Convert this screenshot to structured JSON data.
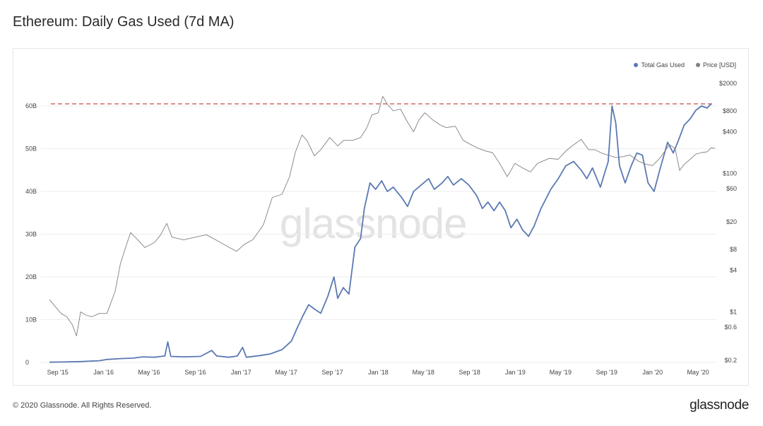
{
  "title": "Ethereum: Daily Gas Used (7d MA)",
  "footer": {
    "copyright": "© 2020 Glassnode. All Rights Reserved.",
    "logo": "glassnode"
  },
  "watermark": "glassnode",
  "legend": {
    "series1": {
      "label": "Total Gas Used",
      "color": "#5b79b2"
    },
    "series2": {
      "label": "Price [USD]",
      "color": "#808080"
    }
  },
  "chart_data": {
    "type": "line",
    "title": "Ethereum: Daily Gas Used (7d MA)",
    "xlabel": "",
    "ylabel": "",
    "x_ticks": [
      "Sep '15",
      "Jan '16",
      "May '16",
      "Sep '16",
      "Jan '17",
      "May '17",
      "Sep '17",
      "Jan '18",
      "May '18",
      "Sep '18",
      "Jan '19",
      "May '19",
      "Sep '19",
      "Jan '20",
      "May '20"
    ],
    "y_left": {
      "ticks": [
        0,
        10,
        20,
        30,
        40,
        50,
        60
      ],
      "labels": [
        "0",
        "10B",
        "20B",
        "30B",
        "40B",
        "50B",
        "60B"
      ],
      "ylim": [
        0,
        65
      ]
    },
    "y_right": {
      "scale": "log",
      "ticks": [
        0.2,
        0.6,
        1,
        4,
        8,
        20,
        60,
        100,
        400,
        800,
        2000
      ],
      "labels": [
        "$0.2",
        "$0.6",
        "$1",
        "$4",
        "$8",
        "$20",
        "$60",
        "$100",
        "$400",
        "$800",
        "$2000"
      ],
      "ylim": [
        0.2,
        2000
      ]
    },
    "reference_line": {
      "axis": "left",
      "value": 60.5,
      "color": "#c84a4a",
      "style": "dashed"
    },
    "series": [
      {
        "name": "Total Gas Used",
        "axis": "left",
        "color": "#5b79b2",
        "points": [
          [
            "2015-08-10",
            0.05
          ],
          [
            "2015-09-15",
            0.1
          ],
          [
            "2015-11-01",
            0.2
          ],
          [
            "2015-12-20",
            0.4
          ],
          [
            "2016-01-10",
            0.7
          ],
          [
            "2016-02-15",
            0.9
          ],
          [
            "2016-03-20",
            1.0
          ],
          [
            "2016-04-15",
            1.3
          ],
          [
            "2016-05-15",
            1.2
          ],
          [
            "2016-06-12",
            1.5
          ],
          [
            "2016-06-20",
            4.8
          ],
          [
            "2016-06-28",
            1.4
          ],
          [
            "2016-08-01",
            1.3
          ],
          [
            "2016-09-15",
            1.4
          ],
          [
            "2016-10-15",
            2.8
          ],
          [
            "2016-10-28",
            1.5
          ],
          [
            "2016-11-30",
            1.2
          ],
          [
            "2016-12-22",
            1.5
          ],
          [
            "2017-01-05",
            3.5
          ],
          [
            "2017-01-15",
            1.2
          ],
          [
            "2017-02-20",
            1.6
          ],
          [
            "2017-03-20",
            2.0
          ],
          [
            "2017-04-20",
            3.0
          ],
          [
            "2017-05-15",
            5.0
          ],
          [
            "2017-05-30",
            8.0
          ],
          [
            "2017-06-15",
            11.0
          ],
          [
            "2017-06-30",
            13.5
          ],
          [
            "2017-07-15",
            12.5
          ],
          [
            "2017-08-01",
            11.5
          ],
          [
            "2017-08-20",
            15.5
          ],
          [
            "2017-09-05",
            20.0
          ],
          [
            "2017-09-15",
            15.0
          ],
          [
            "2017-09-30",
            17.5
          ],
          [
            "2017-10-15",
            16.0
          ],
          [
            "2017-10-31",
            27.0
          ],
          [
            "2017-11-15",
            29.0
          ],
          [
            "2017-11-25",
            36.0
          ],
          [
            "2017-12-10",
            42.0
          ],
          [
            "2017-12-25",
            40.5
          ],
          [
            "2018-01-10",
            42.5
          ],
          [
            "2018-01-25",
            40.0
          ],
          [
            "2018-02-10",
            41.0
          ],
          [
            "2018-03-05",
            38.5
          ],
          [
            "2018-03-20",
            36.5
          ],
          [
            "2018-04-05",
            40.0
          ],
          [
            "2018-04-25",
            41.5
          ],
          [
            "2018-05-15",
            43.0
          ],
          [
            "2018-05-30",
            40.5
          ],
          [
            "2018-06-20",
            42.0
          ],
          [
            "2018-07-05",
            43.5
          ],
          [
            "2018-07-20",
            41.5
          ],
          [
            "2018-08-10",
            43.0
          ],
          [
            "2018-08-30",
            41.5
          ],
          [
            "2018-09-20",
            39.0
          ],
          [
            "2018-10-05",
            36.0
          ],
          [
            "2018-10-20",
            37.5
          ],
          [
            "2018-11-05",
            35.5
          ],
          [
            "2018-11-20",
            37.5
          ],
          [
            "2018-12-05",
            35.5
          ],
          [
            "2018-12-20",
            31.5
          ],
          [
            "2019-01-05",
            33.5
          ],
          [
            "2019-01-20",
            31.0
          ],
          [
            "2019-02-05",
            29.5
          ],
          [
            "2019-02-20",
            32.0
          ],
          [
            "2019-03-10",
            36.0
          ],
          [
            "2019-04-05",
            40.5
          ],
          [
            "2019-04-25",
            43.0
          ],
          [
            "2019-05-15",
            46.0
          ],
          [
            "2019-06-05",
            47.0
          ],
          [
            "2019-06-25",
            45.0
          ],
          [
            "2019-07-10",
            43.0
          ],
          [
            "2019-07-25",
            45.5
          ],
          [
            "2019-08-15",
            41.0
          ],
          [
            "2019-09-05",
            47.0
          ],
          [
            "2019-09-15",
            60.0
          ],
          [
            "2019-09-25",
            56.0
          ],
          [
            "2019-10-05",
            46.0
          ],
          [
            "2019-10-20",
            42.0
          ],
          [
            "2019-11-05",
            46.0
          ],
          [
            "2019-11-20",
            49.0
          ],
          [
            "2019-12-05",
            48.5
          ],
          [
            "2019-12-20",
            42.0
          ],
          [
            "2020-01-05",
            40.0
          ],
          [
            "2020-01-20",
            45.0
          ],
          [
            "2020-02-10",
            51.5
          ],
          [
            "2020-02-25",
            49.0
          ],
          [
            "2020-03-10",
            52.0
          ],
          [
            "2020-03-25",
            55.5
          ],
          [
            "2020-04-10",
            57.0
          ],
          [
            "2020-04-25",
            59.0
          ],
          [
            "2020-05-10",
            60.0
          ],
          [
            "2020-05-25",
            59.5
          ],
          [
            "2020-06-05",
            60.5
          ]
        ]
      },
      {
        "name": "Price [USD]",
        "axis": "right",
        "color": "#808080",
        "points": [
          [
            "2015-08-10",
            1.5
          ],
          [
            "2015-08-25",
            1.2
          ],
          [
            "2015-09-10",
            0.95
          ],
          [
            "2015-09-25",
            0.85
          ],
          [
            "2015-10-10",
            0.65
          ],
          [
            "2015-10-21",
            0.45
          ],
          [
            "2015-11-01",
            1.0
          ],
          [
            "2015-11-15",
            0.9
          ],
          [
            "2015-12-01",
            0.85
          ],
          [
            "2015-12-20",
            0.95
          ],
          [
            "2016-01-10",
            0.95
          ],
          [
            "2016-02-01",
            2.0
          ],
          [
            "2016-02-15",
            5.0
          ],
          [
            "2016-03-01",
            9.0
          ],
          [
            "2016-03-13",
            14.0
          ],
          [
            "2016-04-01",
            11.0
          ],
          [
            "2016-04-20",
            8.5
          ],
          [
            "2016-05-15",
            10.0
          ],
          [
            "2016-06-01",
            13.0
          ],
          [
            "2016-06-17",
            19.0
          ],
          [
            "2016-07-01",
            12.0
          ],
          [
            "2016-08-01",
            11.0
          ],
          [
            "2016-09-01",
            12.0
          ],
          [
            "2016-10-01",
            13.0
          ],
          [
            "2016-11-01",
            10.5
          ],
          [
            "2016-12-01",
            8.5
          ],
          [
            "2016-12-20",
            7.5
          ],
          [
            "2017-01-10",
            9.5
          ],
          [
            "2017-02-01",
            11.0
          ],
          [
            "2017-03-01",
            18.0
          ],
          [
            "2017-03-25",
            45.0
          ],
          [
            "2017-04-20",
            50.0
          ],
          [
            "2017-05-10",
            90.0
          ],
          [
            "2017-05-25",
            200.0
          ],
          [
            "2017-06-12",
            360.0
          ],
          [
            "2017-06-25",
            300.0
          ],
          [
            "2017-07-15",
            180.0
          ],
          [
            "2017-08-01",
            220.0
          ],
          [
            "2017-08-25",
            330.0
          ],
          [
            "2017-09-15",
            250.0
          ],
          [
            "2017-10-01",
            300.0
          ],
          [
            "2017-10-25",
            300.0
          ],
          [
            "2017-11-15",
            330.0
          ],
          [
            "2017-12-01",
            450.0
          ],
          [
            "2017-12-15",
            700.0
          ],
          [
            "2018-01-01",
            750.0
          ],
          [
            "2018-01-13",
            1300.0
          ],
          [
            "2018-01-25",
            1000.0
          ],
          [
            "2018-02-10",
            800.0
          ],
          [
            "2018-03-01",
            850.0
          ],
          [
            "2018-03-20",
            550.0
          ],
          [
            "2018-04-05",
            400.0
          ],
          [
            "2018-04-20",
            600.0
          ],
          [
            "2018-05-05",
            750.0
          ],
          [
            "2018-05-25",
            600.0
          ],
          [
            "2018-06-15",
            500.0
          ],
          [
            "2018-07-01",
            460.0
          ],
          [
            "2018-07-25",
            480.0
          ],
          [
            "2018-08-15",
            300.0
          ],
          [
            "2018-09-05",
            260.0
          ],
          [
            "2018-09-25",
            230.0
          ],
          [
            "2018-10-15",
            210.0
          ],
          [
            "2018-11-01",
            200.0
          ],
          [
            "2018-11-20",
            140.0
          ],
          [
            "2018-12-10",
            90.0
          ],
          [
            "2018-12-31",
            140.0
          ],
          [
            "2019-01-20",
            120.0
          ],
          [
            "2019-02-10",
            105.0
          ],
          [
            "2019-03-01",
            140.0
          ],
          [
            "2019-04-01",
            165.0
          ],
          [
            "2019-04-25",
            160.0
          ],
          [
            "2019-05-15",
            210.0
          ],
          [
            "2019-06-01",
            250.0
          ],
          [
            "2019-06-25",
            310.0
          ],
          [
            "2019-07-15",
            220.0
          ],
          [
            "2019-08-01",
            220.0
          ],
          [
            "2019-08-20",
            195.0
          ],
          [
            "2019-09-10",
            180.0
          ],
          [
            "2019-09-25",
            170.0
          ],
          [
            "2019-10-15",
            175.0
          ],
          [
            "2019-11-01",
            185.0
          ],
          [
            "2019-11-25",
            150.0
          ],
          [
            "2019-12-15",
            135.0
          ],
          [
            "2020-01-01",
            130.0
          ],
          [
            "2020-01-20",
            165.0
          ],
          [
            "2020-02-15",
            260.0
          ],
          [
            "2020-03-01",
            230.0
          ],
          [
            "2020-03-13",
            110.0
          ],
          [
            "2020-03-25",
            135.0
          ],
          [
            "2020-04-10",
            160.0
          ],
          [
            "2020-04-25",
            190.0
          ],
          [
            "2020-05-10",
            200.0
          ],
          [
            "2020-05-25",
            205.0
          ],
          [
            "2020-06-05",
            235.0
          ],
          [
            "2020-06-15",
            230.0
          ]
        ]
      }
    ],
    "grid": {
      "horizontal": true,
      "vertical": false
    },
    "legend_position": "top-right"
  }
}
